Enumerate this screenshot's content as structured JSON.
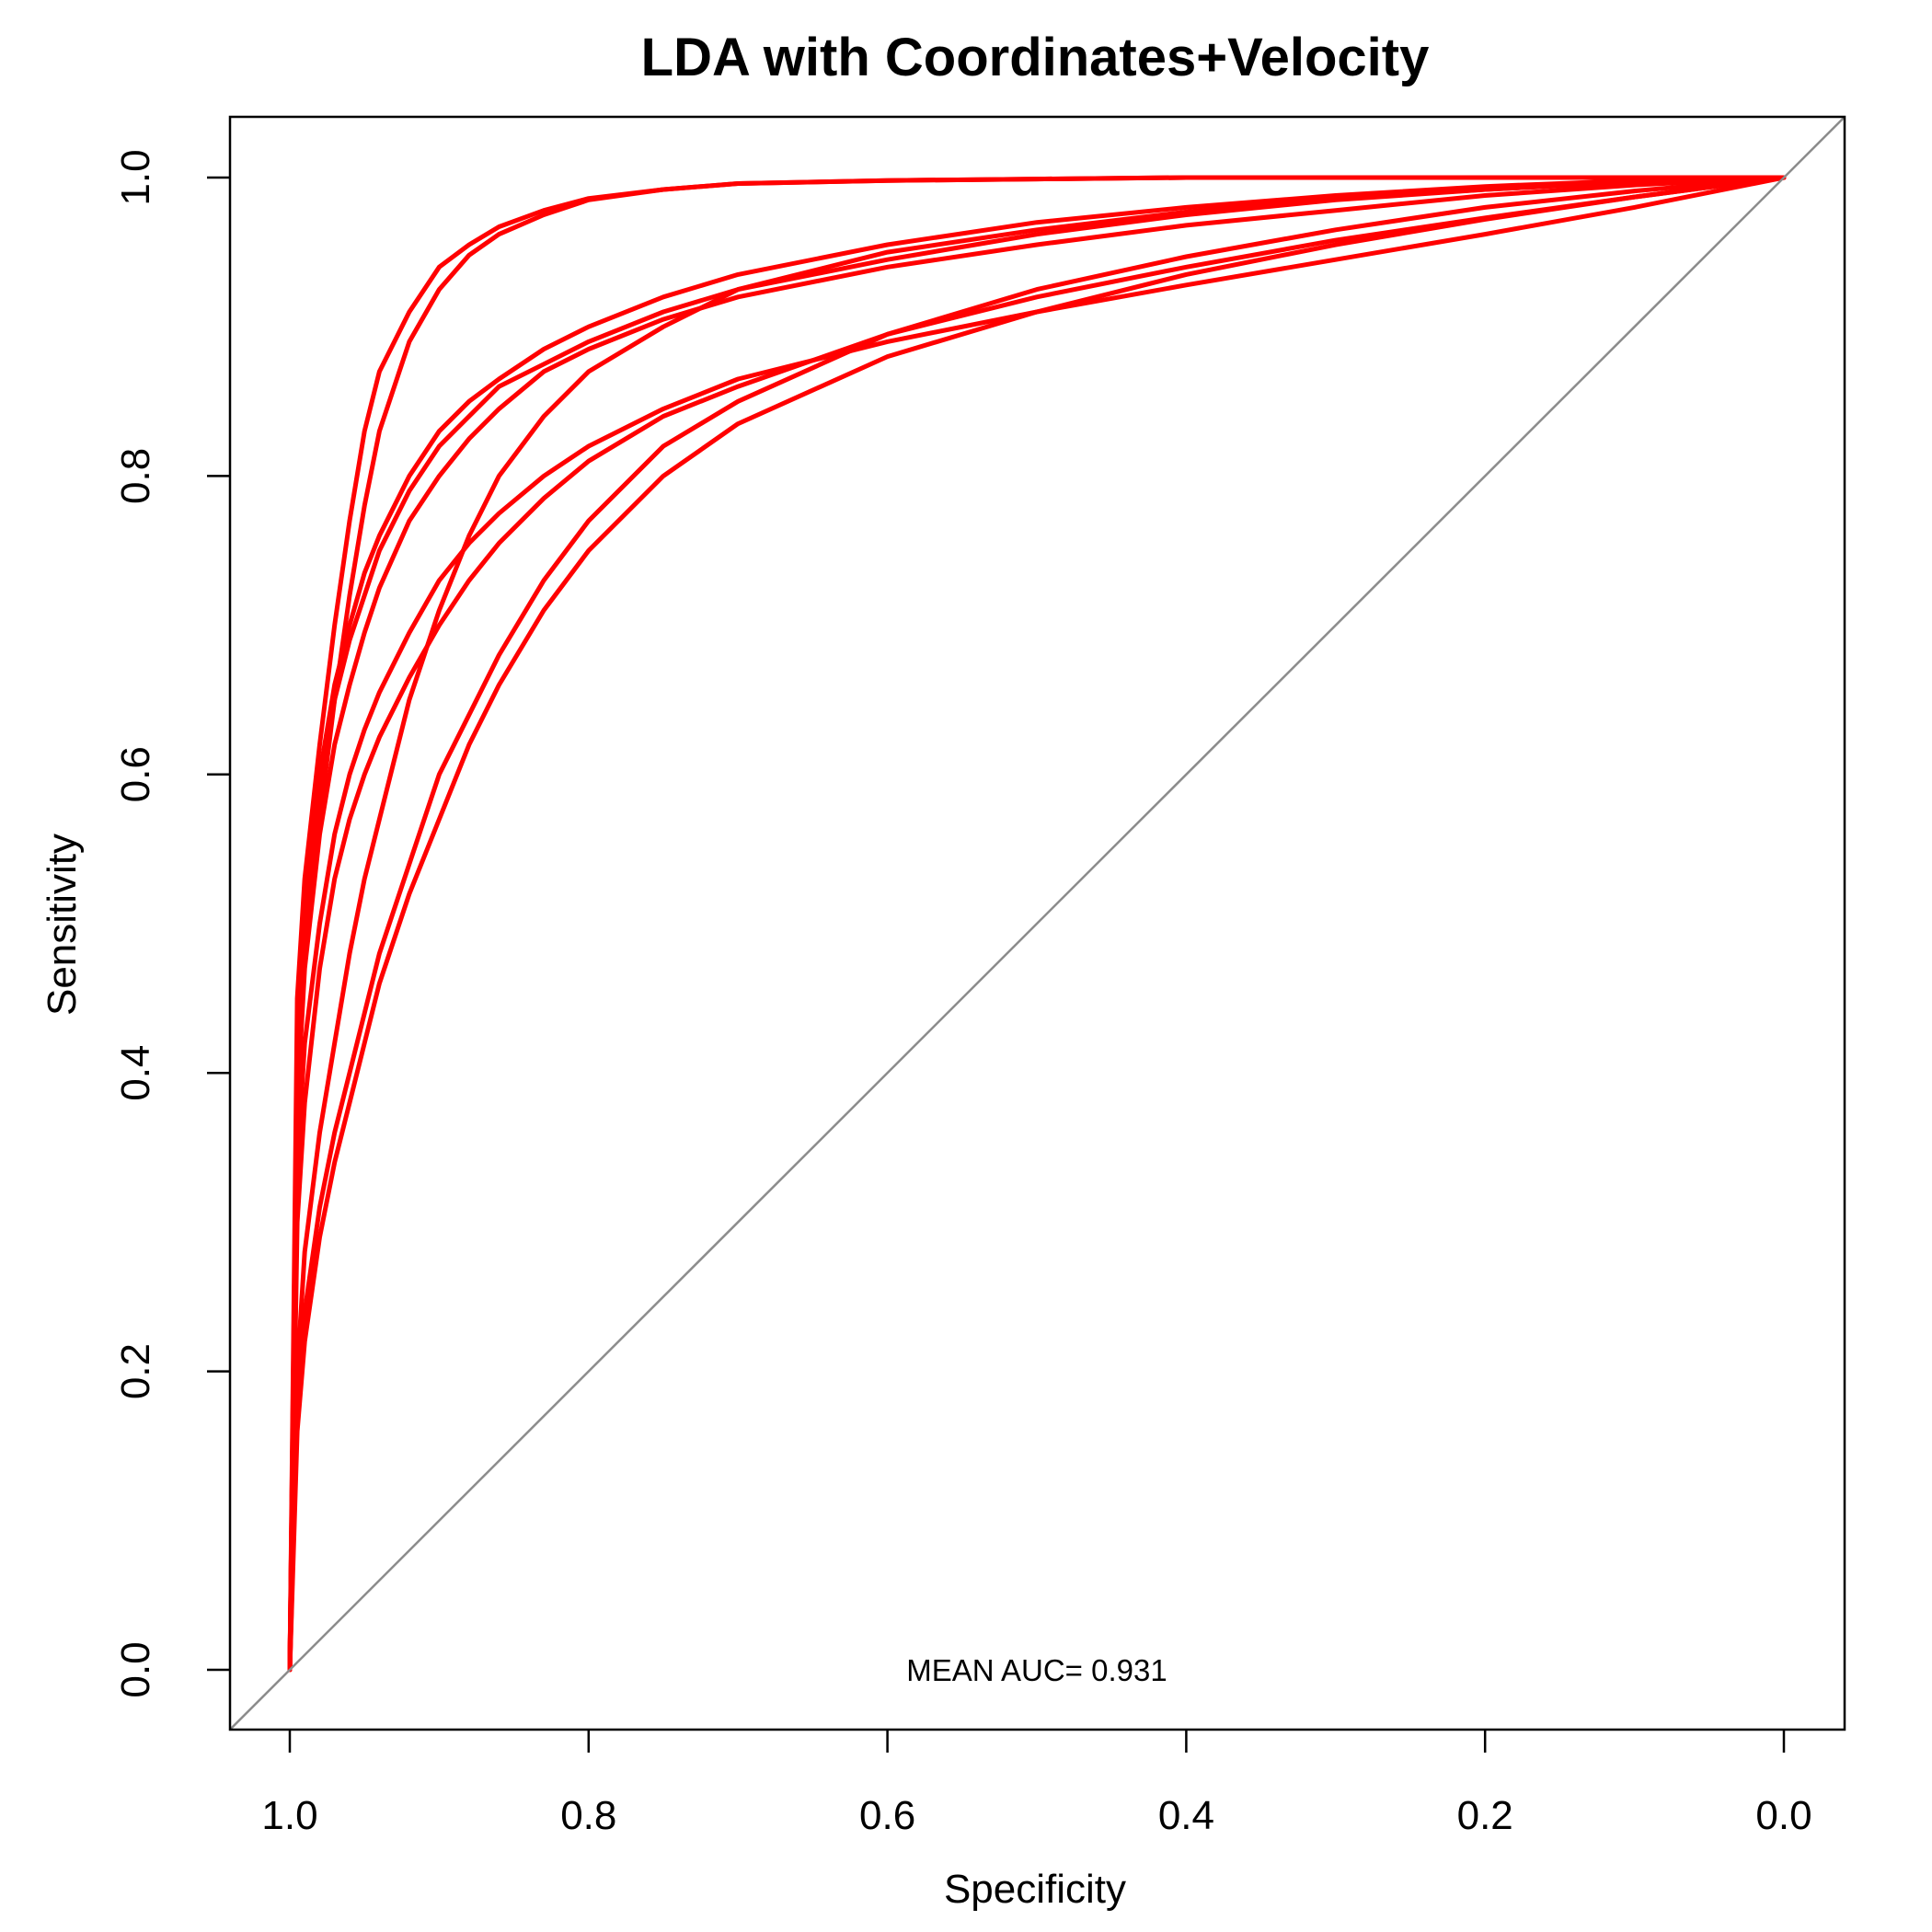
{
  "chart_data": {
    "type": "line",
    "title": "LDA with Coordinates+Velocity",
    "xlabel": "Specificity",
    "ylabel": "Sensitivity",
    "x_reversed": true,
    "xlim": [
      1.0,
      0.0
    ],
    "ylim": [
      0.0,
      1.0
    ],
    "xticks": [
      1.0,
      0.8,
      0.6,
      0.4,
      0.2,
      0.0
    ],
    "xtick_labels": [
      "1.0",
      "0.8",
      "0.6",
      "0.4",
      "0.2",
      "0.0"
    ],
    "yticks": [
      0.0,
      0.2,
      0.4,
      0.6,
      0.8,
      1.0
    ],
    "ytick_labels": [
      "0.0",
      "0.2",
      "0.4",
      "0.6",
      "0.8",
      "1.0"
    ],
    "reference_line": {
      "from": [
        1.0,
        0.0
      ],
      "to": [
        0.0,
        1.0
      ],
      "color": "#8c8c8c"
    },
    "annotation": {
      "text": "MEAN AUC= 0.931",
      "x": 0.5,
      "y": 0.0
    },
    "series_color": "#ff0000",
    "grid": false,
    "series": [
      {
        "x": [
          1.0,
          0.995,
          0.99,
          0.98,
          0.97,
          0.96,
          0.95,
          0.94,
          0.92,
          0.9,
          0.88,
          0.86,
          0.83,
          0.8,
          0.75,
          0.7,
          0.6,
          0.5,
          0.4,
          0.3,
          0.2,
          0.1,
          0.0
        ],
        "y": [
          0.0,
          0.45,
          0.53,
          0.62,
          0.7,
          0.77,
          0.83,
          0.87,
          0.91,
          0.94,
          0.955,
          0.967,
          0.978,
          0.986,
          0.992,
          0.996,
          0.998,
          0.999,
          1.0,
          1.0,
          1.0,
          1.0,
          1.0
        ]
      },
      {
        "x": [
          1.0,
          0.995,
          0.99,
          0.98,
          0.97,
          0.96,
          0.95,
          0.94,
          0.92,
          0.9,
          0.88,
          0.86,
          0.83,
          0.8,
          0.75,
          0.7,
          0.6,
          0.5,
          0.4,
          0.3,
          0.2,
          0.1,
          0.0
        ],
        "y": [
          0.0,
          0.4,
          0.48,
          0.57,
          0.65,
          0.72,
          0.78,
          0.83,
          0.89,
          0.925,
          0.948,
          0.962,
          0.975,
          0.985,
          0.992,
          0.996,
          0.998,
          0.999,
          1.0,
          1.0,
          1.0,
          1.0,
          1.0
        ]
      },
      {
        "x": [
          1.0,
          0.995,
          0.99,
          0.98,
          0.97,
          0.96,
          0.95,
          0.94,
          0.92,
          0.9,
          0.88,
          0.86,
          0.83,
          0.8,
          0.75,
          0.7,
          0.6,
          0.5,
          0.4,
          0.3,
          0.2,
          0.1,
          0.0
        ],
        "y": [
          0.0,
          0.42,
          0.52,
          0.6,
          0.66,
          0.7,
          0.735,
          0.76,
          0.8,
          0.83,
          0.85,
          0.865,
          0.885,
          0.9,
          0.92,
          0.935,
          0.955,
          0.97,
          0.98,
          0.988,
          0.994,
          0.998,
          1.0
        ]
      },
      {
        "x": [
          1.0,
          0.995,
          0.99,
          0.98,
          0.97,
          0.96,
          0.95,
          0.94,
          0.92,
          0.9,
          0.88,
          0.86,
          0.83,
          0.8,
          0.75,
          0.7,
          0.6,
          0.5,
          0.4,
          0.3,
          0.2,
          0.1,
          0.0
        ],
        "y": [
          0.0,
          0.4,
          0.5,
          0.59,
          0.65,
          0.69,
          0.72,
          0.75,
          0.79,
          0.82,
          0.84,
          0.86,
          0.875,
          0.89,
          0.91,
          0.925,
          0.945,
          0.962,
          0.975,
          0.985,
          0.992,
          0.997,
          1.0
        ]
      },
      {
        "x": [
          1.0,
          0.995,
          0.99,
          0.98,
          0.97,
          0.96,
          0.95,
          0.94,
          0.92,
          0.9,
          0.88,
          0.86,
          0.83,
          0.8,
          0.75,
          0.7,
          0.6,
          0.5,
          0.4,
          0.3,
          0.2,
          0.1,
          0.0
        ],
        "y": [
          0.0,
          0.38,
          0.47,
          0.56,
          0.62,
          0.66,
          0.695,
          0.725,
          0.77,
          0.8,
          0.825,
          0.845,
          0.87,
          0.885,
          0.905,
          0.92,
          0.94,
          0.955,
          0.968,
          0.978,
          0.988,
          0.995,
          1.0
        ]
      },
      {
        "x": [
          1.0,
          0.995,
          0.99,
          0.98,
          0.97,
          0.96,
          0.95,
          0.94,
          0.92,
          0.9,
          0.88,
          0.86,
          0.83,
          0.8,
          0.75,
          0.7,
          0.6,
          0.5,
          0.4,
          0.3,
          0.2,
          0.1,
          0.0
        ],
        "y": [
          0.0,
          0.3,
          0.38,
          0.47,
          0.53,
          0.57,
          0.6,
          0.625,
          0.665,
          0.7,
          0.73,
          0.755,
          0.785,
          0.81,
          0.84,
          0.86,
          0.895,
          0.92,
          0.94,
          0.958,
          0.973,
          0.987,
          1.0
        ]
      },
      {
        "x": [
          1.0,
          0.995,
          0.99,
          0.98,
          0.97,
          0.96,
          0.95,
          0.94,
          0.92,
          0.9,
          0.88,
          0.86,
          0.83,
          0.8,
          0.75,
          0.7,
          0.6,
          0.5,
          0.4,
          0.3,
          0.2,
          0.1,
          0.0
        ],
        "y": [
          0.0,
          0.2,
          0.28,
          0.36,
          0.42,
          0.48,
          0.53,
          0.57,
          0.65,
          0.71,
          0.76,
          0.8,
          0.84,
          0.87,
          0.9,
          0.925,
          0.95,
          0.965,
          0.977,
          0.986,
          0.992,
          0.997,
          1.0
        ]
      },
      {
        "x": [
          1.0,
          0.995,
          0.99,
          0.98,
          0.97,
          0.96,
          0.95,
          0.94,
          0.92,
          0.9,
          0.88,
          0.86,
          0.83,
          0.8,
          0.75,
          0.7,
          0.6,
          0.5,
          0.4,
          0.3,
          0.2,
          0.1,
          0.0
        ],
        "y": [
          0.0,
          0.18,
          0.24,
          0.31,
          0.36,
          0.4,
          0.44,
          0.48,
          0.54,
          0.6,
          0.64,
          0.68,
          0.73,
          0.77,
          0.82,
          0.85,
          0.895,
          0.925,
          0.947,
          0.965,
          0.98,
          0.991,
          1.0
        ]
      },
      {
        "x": [
          1.0,
          0.995,
          0.99,
          0.98,
          0.97,
          0.96,
          0.95,
          0.94,
          0.92,
          0.9,
          0.88,
          0.86,
          0.83,
          0.8,
          0.75,
          0.7,
          0.6,
          0.5,
          0.4,
          0.3,
          0.2,
          0.1,
          0.0
        ],
        "y": [
          0.0,
          0.16,
          0.22,
          0.29,
          0.34,
          0.38,
          0.42,
          0.46,
          0.52,
          0.57,
          0.62,
          0.66,
          0.71,
          0.75,
          0.8,
          0.835,
          0.88,
          0.91,
          0.935,
          0.955,
          0.972,
          0.987,
          1.0
        ]
      },
      {
        "x": [
          1.0,
          0.995,
          0.99,
          0.98,
          0.97,
          0.96,
          0.95,
          0.94,
          0.92,
          0.9,
          0.88,
          0.86,
          0.83,
          0.8,
          0.75,
          0.7,
          0.6,
          0.5,
          0.4,
          0.3,
          0.2,
          0.1,
          0.0
        ],
        "y": [
          0.0,
          0.34,
          0.42,
          0.5,
          0.56,
          0.6,
          0.63,
          0.655,
          0.695,
          0.73,
          0.755,
          0.775,
          0.8,
          0.82,
          0.845,
          0.865,
          0.89,
          0.91,
          0.928,
          0.945,
          0.962,
          0.98,
          1.0
        ]
      }
    ]
  }
}
